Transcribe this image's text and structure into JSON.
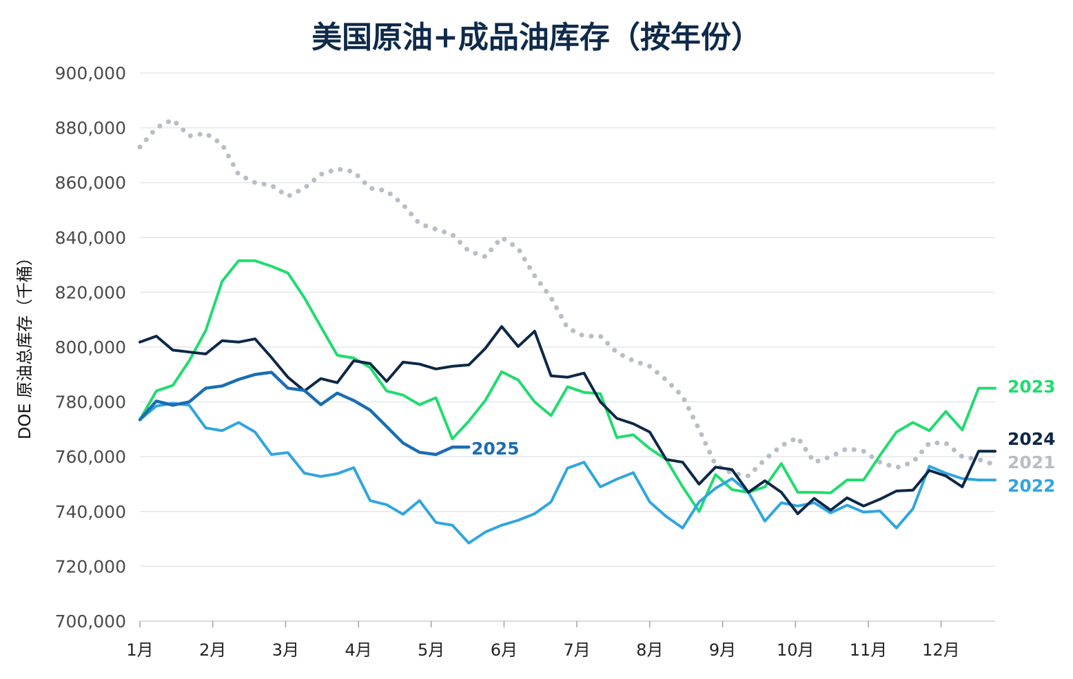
{
  "chart_data": {
    "type": "line",
    "title": "美国原油+成品油库存（按年份）",
    "xlabel": "",
    "ylabel": "DOE 原油总库存（千桶）",
    "ylim": [
      700000,
      900000
    ],
    "yticks": [
      700000,
      720000,
      740000,
      760000,
      780000,
      800000,
      820000,
      840000,
      860000,
      880000,
      900000
    ],
    "ytick_labels": [
      "700,000",
      "720,000",
      "740,000",
      "760,000",
      "780,000",
      "800,000",
      "820,000",
      "840,000",
      "860,000",
      "880,000",
      "900,000"
    ],
    "x_unit": "week",
    "xlim": [
      1,
      53
    ],
    "xticks": [
      1,
      5.43,
      9.86,
      14.29,
      18.71,
      23.14,
      27.57,
      32,
      36.43,
      40.86,
      45.29,
      49.71
    ],
    "xtick_labels": [
      "1月",
      "2月",
      "3月",
      "4月",
      "5月",
      "6月",
      "7月",
      "8月",
      "9月",
      "10月",
      "11月",
      "12月"
    ],
    "grid": true,
    "legend": "inline labels at line ends",
    "colors": {
      "2021": "#b8bec6",
      "2022": "#2fa5e0",
      "2023": "#1fdc6e",
      "2024": "#0d2847",
      "2025": "#1a6db5"
    },
    "series": [
      {
        "name": "2021",
        "style": "dotted",
        "x": [
          1,
          2,
          3,
          4,
          5,
          6,
          7,
          8,
          9,
          10,
          11,
          12,
          13,
          14,
          15,
          16,
          17,
          18,
          19,
          20,
          21,
          22,
          23,
          24,
          25,
          26,
          27,
          28,
          29,
          30,
          31,
          32,
          33,
          34,
          35,
          36,
          37,
          38,
          39,
          40,
          41,
          42,
          43,
          44,
          45,
          46,
          47,
          48,
          49,
          50,
          51,
          52,
          53
        ],
        "values": [
          873000,
          880000,
          883000,
          877000,
          878000,
          874000,
          863000,
          860000,
          859000,
          855000,
          858000,
          863000,
          865000,
          864000,
          858000,
          857000,
          852000,
          845000,
          843000,
          841000,
          835000,
          833000,
          840000,
          836000,
          826000,
          818000,
          807000,
          804000,
          804000,
          798000,
          795000,
          793000,
          788000,
          782000,
          770000,
          757000,
          754000,
          753000,
          759000,
          764000,
          767000,
          758000,
          760000,
          763000,
          762000,
          758000,
          756000,
          758000,
          765000,
          765000,
          760000,
          759000,
          757000
        ]
      },
      {
        "name": "2022",
        "x": [
          1,
          2,
          3,
          4,
          5,
          6,
          7,
          8,
          9,
          10,
          11,
          12,
          13,
          14,
          15,
          16,
          17,
          18,
          19,
          20,
          21,
          22,
          23,
          24,
          25,
          26,
          27,
          28,
          29,
          30,
          31,
          32,
          33,
          34,
          35,
          36,
          37,
          38,
          39,
          40,
          41,
          42,
          43,
          44,
          45,
          46,
          47,
          48,
          49,
          50,
          51,
          52,
          53
        ],
        "values": [
          773500,
          778500,
          779500,
          778800,
          770500,
          769500,
          772500,
          769000,
          760800,
          761500,
          754000,
          752800,
          753800,
          756000,
          744000,
          742500,
          739000,
          744000,
          736000,
          735000,
          728500,
          732500,
          735000,
          736800,
          739200,
          743500,
          755800,
          758000,
          749000,
          751800,
          754200,
          743500,
          738200,
          734000,
          743500,
          748500,
          752000,
          747000,
          736500,
          743200,
          742000,
          743200,
          739500,
          742300,
          739800,
          740200,
          734000,
          741000,
          756500,
          754000,
          752000,
          751500,
          751500
        ]
      },
      {
        "name": "2023",
        "x": [
          1,
          2,
          3,
          4,
          5,
          6,
          7,
          8,
          9,
          10,
          11,
          12,
          13,
          14,
          15,
          16,
          17,
          18,
          19,
          20,
          21,
          22,
          23,
          24,
          25,
          26,
          27,
          28,
          29,
          30,
          31,
          32,
          33,
          34,
          35,
          36,
          37,
          38,
          39,
          40,
          41,
          42,
          43,
          44,
          45,
          46,
          47,
          48,
          49,
          50,
          51,
          52,
          53
        ],
        "values": [
          773500,
          784000,
          786000,
          795000,
          806000,
          824000,
          831500,
          831500,
          829500,
          827000,
          818000,
          807500,
          797000,
          796000,
          792500,
          784000,
          782500,
          779000,
          781500,
          766500,
          773000,
          780500,
          791000,
          788000,
          780000,
          775000,
          785500,
          783500,
          783000,
          767000,
          768000,
          763000,
          759000,
          749000,
          740000,
          753500,
          748000,
          747000,
          749000,
          757500,
          747000,
          747000,
          746800,
          751500,
          751500,
          760500,
          769000,
          772500,
          769500,
          776500,
          769800,
          785000,
          785000
        ]
      },
      {
        "name": "2024",
        "x": [
          1,
          2,
          3,
          4,
          5,
          6,
          7,
          8,
          9,
          10,
          11,
          12,
          13,
          14,
          15,
          16,
          17,
          18,
          19,
          20,
          21,
          22,
          23,
          24,
          25,
          26,
          27,
          28,
          29,
          30,
          31,
          32,
          33,
          34,
          35,
          36,
          37,
          38,
          39,
          40,
          41,
          42,
          43,
          44,
          45,
          46,
          47,
          48,
          49,
          50,
          51,
          52,
          53
        ],
        "values": [
          801800,
          804000,
          798900,
          798200,
          797500,
          802300,
          801800,
          803000,
          796200,
          789000,
          784000,
          788500,
          787000,
          795000,
          794000,
          787500,
          794500,
          793800,
          792000,
          793000,
          793500,
          799500,
          807500,
          800200,
          805800,
          789500,
          789000,
          790500,
          780000,
          774000,
          772000,
          769000,
          759000,
          758000,
          750000,
          756200,
          755300,
          747000,
          751200,
          747000,
          739200,
          744800,
          740500,
          745000,
          742000,
          744500,
          747500,
          747800,
          755000,
          753000,
          749000,
          762000,
          762000
        ]
      },
      {
        "name": "2025",
        "x": [
          1,
          2,
          3,
          4,
          5,
          6,
          7,
          8,
          9,
          10,
          11,
          12,
          13,
          14,
          15,
          16,
          17,
          18,
          19,
          20,
          21
        ],
        "values": [
          773500,
          780300,
          778800,
          780000,
          785000,
          785800,
          788200,
          790000,
          790800,
          785000,
          784200,
          779000,
          783200,
          780500,
          777000,
          771000,
          765000,
          761600,
          760800,
          763500,
          763500
        ]
      }
    ]
  }
}
